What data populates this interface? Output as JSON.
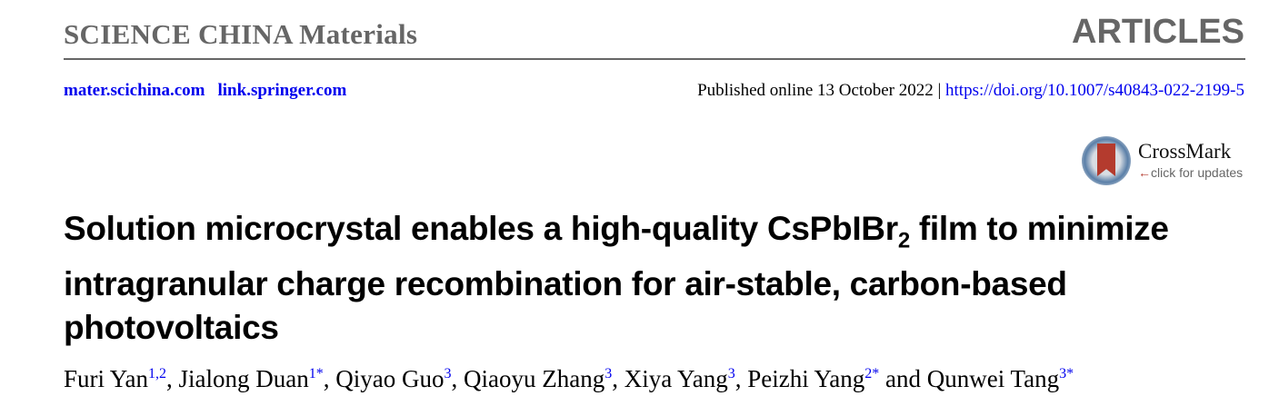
{
  "header": {
    "journal": "SCIENCE CHINA Materials",
    "section": "ARTICLES"
  },
  "links": [
    "mater.scichina.com",
    "link.springer.com"
  ],
  "publication": {
    "published": "Published online 13 October 2022",
    "separator": "|",
    "doi": "https://doi.org/10.1007/s40843-022-2199-5"
  },
  "crossmark": {
    "label": "CrossMark",
    "sub": "click for updates",
    "icon": "crossmark-logo-icon"
  },
  "title": {
    "part1": "Solution microcrystal enables a high-quality CsPbIBr",
    "subscript": "2",
    "part2": " film to minimize intragranular charge recombination for air-stable, carbon-based photovoltaics"
  },
  "authors": [
    {
      "name": "Furi Yan",
      "aff": "1,2",
      "sep": ", "
    },
    {
      "name": "Jialong Duan",
      "aff": "1*",
      "sep": ", "
    },
    {
      "name": "Qiyao Guo",
      "aff": "3",
      "sep": ", "
    },
    {
      "name": "Qiaoyu Zhang",
      "aff": "3",
      "sep": ", "
    },
    {
      "name": "Xiya Yang",
      "aff": "3",
      "sep": ", "
    },
    {
      "name": "Peizhi Yang",
      "aff": "2*",
      "sep": " and "
    },
    {
      "name": "Qunwei Tang",
      "aff": "3*",
      "sep": ""
    }
  ],
  "colors": {
    "link": "#0000ee",
    "header_gray": "#666666",
    "crossmark_red": "#b43b2e"
  }
}
